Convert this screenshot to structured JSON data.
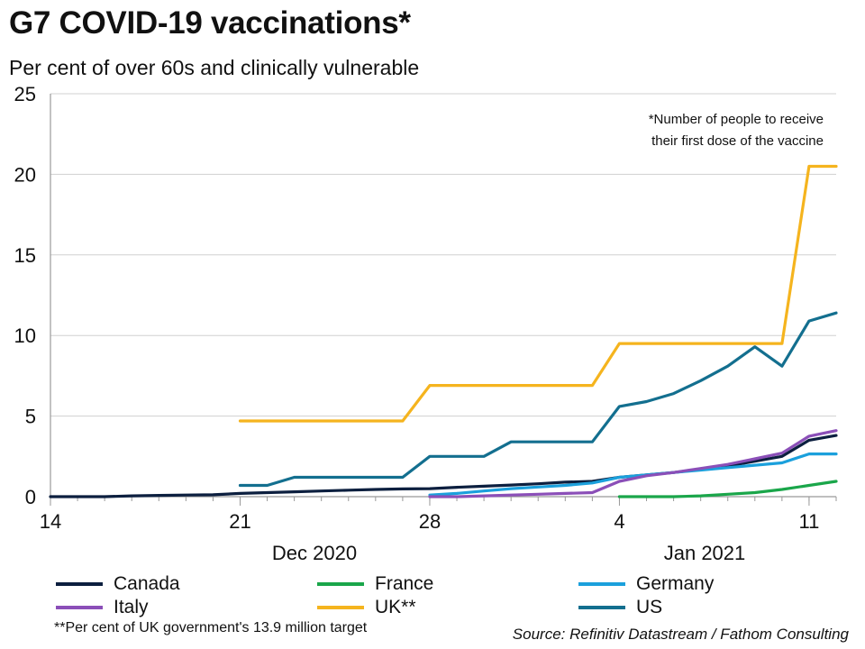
{
  "header": {
    "title": "G7 COVID-19 vaccinations*",
    "subtitle": "Per cent of over 60s and clinically vulnerable"
  },
  "annotation": {
    "line1": "*Number of people to receive",
    "line2": "their first dose of the vaccine"
  },
  "footer": {
    "footnote": "**Per cent of UK government's 13.9 million target",
    "source": "Source: Refinitiv Datastream / Fathom Consulting"
  },
  "chart_data": {
    "type": "line",
    "title": "G7 COVID-19 vaccinations*",
    "subtitle": "Per cent of over 60s and clinically vulnerable",
    "ylim": [
      0,
      25
    ],
    "yticks": [
      "0",
      "5",
      "10",
      "15",
      "20",
      "25"
    ],
    "xlim": [
      "2020-12-14",
      "2021-01-12"
    ],
    "xticks": [
      {
        "date": "2020-12-14",
        "label": "14"
      },
      {
        "date": "2020-12-21",
        "label": "21"
      },
      {
        "date": "2020-12-28",
        "label": "28"
      },
      {
        "date": "2021-01-04",
        "label": "4"
      },
      {
        "date": "2021-01-11",
        "label": "11"
      }
    ],
    "month_labels": [
      {
        "label": "Dec 2020"
      },
      {
        "label": "Jan 2021"
      }
    ],
    "grid": "horizontal",
    "legend": "bottom",
    "series": [
      {
        "name": "Canada",
        "color": "#0c1f3f",
        "x": [
          "2020-12-14",
          "2020-12-15",
          "2020-12-16",
          "2020-12-17",
          "2020-12-18",
          "2020-12-19",
          "2020-12-20",
          "2020-12-21",
          "2020-12-22",
          "2020-12-23",
          "2020-12-24",
          "2020-12-25",
          "2020-12-26",
          "2020-12-27",
          "2020-12-28",
          "2020-12-29",
          "2020-12-30",
          "2020-12-31",
          "2021-01-01",
          "2021-01-02",
          "2021-01-03",
          "2021-01-04",
          "2021-01-05",
          "2021-01-06",
          "2021-01-07",
          "2021-01-08",
          "2021-01-09",
          "2021-01-10",
          "2021-01-11",
          "2021-01-12"
        ],
        "y": [
          0.0,
          0.0,
          0.0,
          0.05,
          0.08,
          0.1,
          0.12,
          0.2,
          0.25,
          0.3,
          0.35,
          0.4,
          0.45,
          0.48,
          0.5,
          0.58,
          0.65,
          0.72,
          0.8,
          0.9,
          0.95,
          1.2,
          1.35,
          1.5,
          1.7,
          1.9,
          2.2,
          2.5,
          3.5,
          3.8
        ]
      },
      {
        "name": "France",
        "color": "#1aa64a",
        "x": [
          "2021-01-04",
          "2021-01-05",
          "2021-01-06",
          "2021-01-07",
          "2021-01-08",
          "2021-01-09",
          "2021-01-10",
          "2021-01-11",
          "2021-01-12"
        ],
        "y": [
          0.0,
          0.0,
          0.0,
          0.05,
          0.15,
          0.25,
          0.45,
          0.7,
          0.95
        ]
      },
      {
        "name": "Germany",
        "color": "#1ba0dc",
        "x": [
          "2020-12-28",
          "2020-12-29",
          "2020-12-30",
          "2020-12-31",
          "2021-01-01",
          "2021-01-02",
          "2021-01-03",
          "2021-01-04",
          "2021-01-05",
          "2021-01-06",
          "2021-01-07",
          "2021-01-08",
          "2021-01-09",
          "2021-01-10",
          "2021-01-11",
          "2021-01-12"
        ],
        "y": [
          0.1,
          0.2,
          0.35,
          0.5,
          0.6,
          0.7,
          0.85,
          1.2,
          1.35,
          1.5,
          1.65,
          1.8,
          1.95,
          2.1,
          2.65,
          2.65
        ]
      },
      {
        "name": "Italy",
        "color": "#8b4fb8",
        "x": [
          "2020-12-28",
          "2020-12-29",
          "2020-12-30",
          "2020-12-31",
          "2021-01-01",
          "2021-01-02",
          "2021-01-03",
          "2021-01-04",
          "2021-01-05",
          "2021-01-06",
          "2021-01-07",
          "2021-01-08",
          "2021-01-09",
          "2021-01-10",
          "2021-01-11",
          "2021-01-12"
        ],
        "y": [
          0.0,
          0.0,
          0.05,
          0.1,
          0.15,
          0.2,
          0.25,
          0.95,
          1.3,
          1.5,
          1.75,
          2.0,
          2.35,
          2.7,
          3.75,
          4.1
        ]
      },
      {
        "name": "UK**",
        "color": "#f5b41e",
        "x": [
          "2020-12-21",
          "2020-12-27",
          "2020-12-28",
          "2021-01-03",
          "2021-01-04",
          "2021-01-10",
          "2021-01-11",
          "2021-01-12"
        ],
        "y": [
          4.7,
          4.7,
          6.9,
          6.9,
          9.5,
          9.5,
          20.5,
          20.5
        ]
      },
      {
        "name": "US",
        "color": "#136f8f",
        "x": [
          "2020-12-21",
          "2020-12-22",
          "2020-12-23",
          "2020-12-24",
          "2020-12-25",
          "2020-12-26",
          "2020-12-27",
          "2020-12-28",
          "2020-12-29",
          "2020-12-30",
          "2020-12-31",
          "2021-01-01",
          "2021-01-02",
          "2021-01-03",
          "2021-01-04",
          "2021-01-05",
          "2021-01-06",
          "2021-01-07",
          "2021-01-08",
          "2021-01-09",
          "2021-01-10",
          "2021-01-11",
          "2021-01-12"
        ],
        "y": [
          0.7,
          0.7,
          1.2,
          1.2,
          1.2,
          1.2,
          1.2,
          2.5,
          2.5,
          2.5,
          3.4,
          3.4,
          3.4,
          3.4,
          5.6,
          5.9,
          6.4,
          7.2,
          8.1,
          9.3,
          8.1,
          10.9,
          11.4
        ]
      }
    ]
  }
}
